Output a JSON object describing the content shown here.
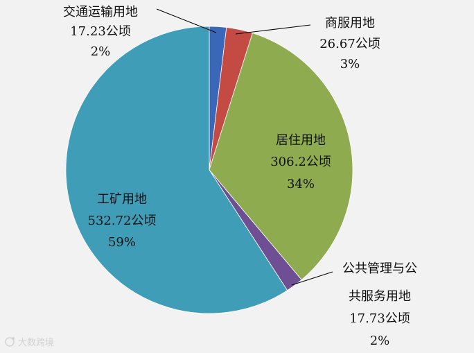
{
  "chart_data": {
    "type": "pie",
    "title": "",
    "start_angle_deg": 0,
    "direction": "clockwise",
    "slices": [
      {
        "name": "交通运输用地",
        "value": 17.23,
        "value_label": "17.23公顷",
        "percent_label": "2%",
        "color": "#3a67b8"
      },
      {
        "name": "商服用地",
        "value": 26.67,
        "value_label": "26.67公顷",
        "percent_label": "3%",
        "color": "#c44a44"
      },
      {
        "name": "居住用地",
        "value": 306.2,
        "value_label": "306.2公顷",
        "percent_label": "34%",
        "color": "#8fab50"
      },
      {
        "name": "公共管理与公共服务用地",
        "name_lines": [
          "公共管理与公",
          "共服务用地"
        ],
        "value": 17.73,
        "value_label": "17.73公顷",
        "percent_label": "2%",
        "color": "#6e4f93"
      },
      {
        "name": "工矿用地",
        "value": 532.72,
        "value_label": "532.72公顷",
        "percent_label": "59%",
        "color": "#3f9db7"
      }
    ]
  },
  "watermark": {
    "icon": "watermark-logo-icon",
    "text": "大数跨境"
  }
}
